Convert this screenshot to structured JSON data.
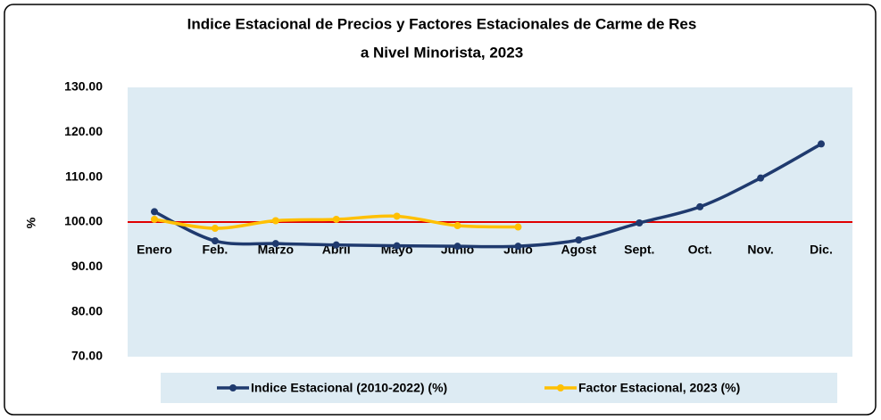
{
  "chart_data": {
    "type": "line",
    "title": [
      "Indice Estacional de Precios y Factores Estacionales de Carme de Res",
      "a Nivel Minorista, 2023"
    ],
    "y_label": "%",
    "categories": [
      "Enero",
      "Feb.",
      "Marzo",
      "Abril",
      "Mayo",
      "Junio",
      "Julio",
      "Agost",
      "Sept.",
      "Oct.",
      "Nov.",
      "Dic."
    ],
    "series": [
      {
        "name": "Indice Estacional (2010-2022) (%)",
        "color": "#1f3a6e",
        "values": [
          102.3,
          95.8,
          95.2,
          94.9,
          94.7,
          94.6,
          94.6,
          96.0,
          99.8,
          103.4,
          109.8,
          117.4
        ]
      },
      {
        "name": "Factor Estacional, 2023 (%)",
        "color": "#ffc000",
        "values": [
          100.6,
          98.6,
          100.3,
          100.6,
          101.3,
          99.2,
          98.9,
          null,
          null,
          null,
          null,
          null
        ]
      }
    ],
    "ylim": [
      70,
      130
    ],
    "yticks": [
      {
        "value": 70,
        "label": "70.00"
      },
      {
        "value": 80,
        "label": "80.00"
      },
      {
        "value": 90,
        "label": "90.00"
      },
      {
        "value": 100,
        "label": "100.00"
      },
      {
        "value": 110,
        "label": "110.00"
      },
      {
        "value": 120,
        "label": "120.00"
      },
      {
        "value": 130,
        "label": "130.00"
      }
    ],
    "x_axis_crosses": 100,
    "x_axis_color": "#e00000",
    "plot_background": "#ddebf3",
    "smooth": true,
    "legend": "bottom"
  }
}
